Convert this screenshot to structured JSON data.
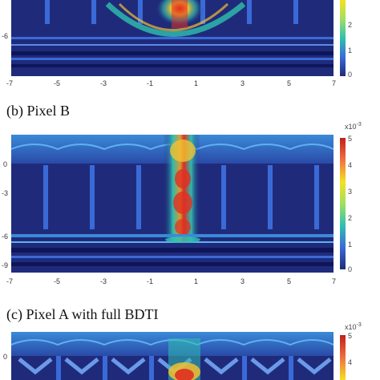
{
  "panel_a": {
    "xticks": [
      "-7",
      "-5",
      "-3",
      "-1",
      "1",
      "3",
      "5",
      "7"
    ],
    "yticks": [
      "-6"
    ],
    "colorbar_ticks": [
      "2",
      "1",
      "0"
    ]
  },
  "panel_b": {
    "caption": "(b) Pixel B",
    "xticks": [
      "-7",
      "-5",
      "-3",
      "-1",
      "1",
      "3",
      "5",
      "7"
    ],
    "yticks": [
      "0",
      "-3",
      "-6",
      "-9"
    ],
    "colorbar_ticks": [
      "5",
      "4",
      "3",
      "2",
      "1",
      "0"
    ],
    "colorbar_exponent_base": "x10",
    "colorbar_exponent": "-3"
  },
  "panel_c": {
    "caption": "(c) Pixel A with full BDTI",
    "yticks": [
      "0"
    ],
    "colorbar_ticks": [
      "5",
      "4"
    ],
    "colorbar_exponent_base": "x10",
    "colorbar_exponent": "-3"
  },
  "colors": {
    "background_field": "#1f2b7a",
    "hot": "#e03020",
    "warm": "#f2c030",
    "mid": "#30c0b0",
    "cool": "#3a6ad8"
  }
}
